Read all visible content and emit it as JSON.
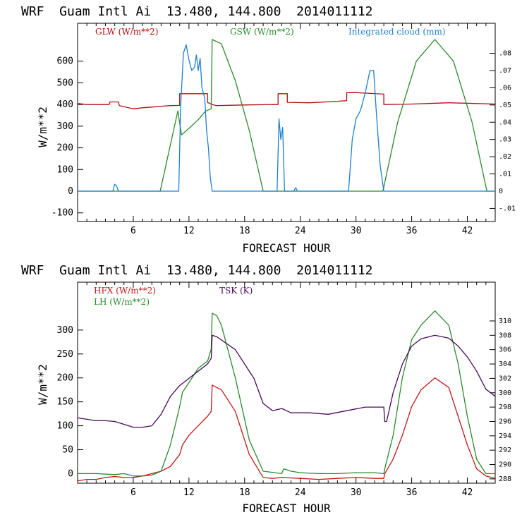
{
  "chart_data": [
    {
      "type": "line",
      "title": "WRF  Guam Intl Ai  13.480, 144.800  2014011112",
      "xlabel": "FORECAST HOUR",
      "ylabel": "W/m**2",
      "xlim": [
        0,
        45
      ],
      "xticks": [
        "6",
        "12",
        "18",
        "24",
        "30",
        "36",
        "42"
      ],
      "ylim": [
        -140,
        775
      ],
      "yticks": [
        "600",
        "500",
        "400",
        "300",
        "200",
        "100",
        "0",
        "-100"
      ],
      "y2lim": [
        -0.0176,
        0.0974
      ],
      "y2ticks": [
        ".08",
        ".07",
        ".06",
        ".05",
        ".04",
        ".03",
        ".02",
        ".01",
        "0",
        "-.01"
      ],
      "legend": [
        "GLW (W/m**2)",
        "GSW (W/m**2)",
        "Integrated cloud (mm)"
      ],
      "colors": {
        "glw": "#b01010",
        "gsw": "#2a8a2a",
        "cloud": "#1f7fd0"
      },
      "series": [
        {
          "name": "GLW (W/m**2)",
          "axis": "left",
          "color": "#b01010",
          "x": [
            0,
            1,
            3.4,
            3.5,
            4.4,
            4.5,
            5,
            6,
            7,
            8,
            9,
            10,
            11,
            11,
            14,
            14,
            14.5,
            15,
            18,
            21,
            21.6,
            21.6,
            22.6,
            22.6,
            25,
            28,
            29,
            29,
            30,
            33,
            33,
            36,
            40,
            45
          ],
          "y": [
            405,
            400,
            400,
            412,
            412,
            395,
            390,
            380,
            385,
            388,
            392,
            395,
            396,
            450,
            450,
            410,
            400,
            395,
            398,
            400,
            400,
            450,
            450,
            410,
            408,
            415,
            418,
            455,
            455,
            448,
            400,
            402,
            408,
            402
          ]
        },
        {
          "name": "GSW (W/m**2)",
          "axis": "left",
          "color": "#2a8a2a",
          "x": [
            0,
            8.9,
            10.8,
            11.2,
            12,
            13,
            13.8,
            14.4,
            14.5,
            15.5,
            17,
            18.5,
            20,
            32.9,
            34.5,
            36.5,
            38.5,
            40.5,
            42.5,
            44.1,
            45
          ],
          "y": [
            0,
            0,
            370,
            260,
            290,
            330,
            370,
            380,
            700,
            680,
            510,
            280,
            0,
            0,
            320,
            600,
            700,
            600,
            320,
            0,
            0
          ]
        },
        {
          "name": "Integrated cloud (mm)",
          "axis": "right",
          "color": "#1f7fd0",
          "x": [
            0,
            3.8,
            4.0,
            4.2,
            4.4,
            10.9,
            11.1,
            11.4,
            11.7,
            12.0,
            12.3,
            12.6,
            12.8,
            13.0,
            13.2,
            13.4,
            13.7,
            13.9,
            14.1,
            14.3,
            14.5,
            21.5,
            21.7,
            21.9,
            22.1,
            22.3,
            23.3,
            23.5,
            23.7,
            29.2,
            29.6,
            30.0,
            30.5,
            31.0,
            31.5,
            31.9,
            32.2,
            32.6,
            33.0,
            45
          ],
          "y": [
            0,
            0,
            0.004,
            0.003,
            0,
            0,
            0.048,
            0.08,
            0.085,
            0.076,
            0.07,
            0.072,
            0.079,
            0.07,
            0.077,
            0.06,
            0.054,
            0.035,
            0.025,
            0.008,
            0,
            0,
            0.042,
            0.03,
            0.037,
            0,
            0,
            0.002,
            0,
            0,
            0.03,
            0.042,
            0.047,
            0.057,
            0.07,
            0.07,
            0.045,
            0.015,
            0,
            0
          ]
        }
      ]
    },
    {
      "type": "line",
      "title": "WRF  Guam Intl Ai  13.480, 144.800  2014011112",
      "xlabel": "FORECAST HOUR",
      "ylabel": "W/m**2",
      "xlim": [
        0,
        45
      ],
      "xticks": [
        "6",
        "12",
        "18",
        "24",
        "30",
        "36",
        "42"
      ],
      "ylim": [
        -20,
        400
      ],
      "yticks": [
        "300",
        "250",
        "200",
        "150",
        "100",
        "50",
        "0"
      ],
      "y2lim": [
        287.4,
        315.4
      ],
      "y2ticks": [
        "310",
        "308",
        "306",
        "304",
        "302",
        "300",
        "298",
        "296",
        "294",
        "292",
        "290",
        "288"
      ],
      "legend": [
        "HFX (W/m**2)",
        "LH  (W/m**2)",
        "TSK (K)"
      ],
      "colors": {
        "hfx": "#c01818",
        "lh": "#2a8a2a",
        "tsk": "#4a0a5a"
      },
      "series": [
        {
          "name": "HFX (W/m**2)",
          "axis": "left",
          "color": "#c01818",
          "x": [
            0,
            1,
            2,
            3,
            4,
            5,
            6,
            7,
            8,
            9,
            10,
            11,
            11.3,
            12,
            13,
            14,
            14.4,
            14.5,
            15,
            15.5,
            17,
            18.5,
            20,
            21,
            22,
            24,
            26,
            28,
            30,
            32,
            33,
            33.1,
            34,
            35,
            36,
            37,
            38.5,
            40,
            41,
            42,
            43,
            44,
            45
          ],
          "y": [
            -15,
            -12,
            -12,
            -8,
            -6,
            -8,
            -8,
            -5,
            0,
            5,
            15,
            40,
            60,
            80,
            100,
            120,
            130,
            185,
            180,
            175,
            130,
            40,
            -8,
            -10,
            -8,
            -10,
            -12,
            -10,
            -8,
            -10,
            -10,
            0,
            30,
            80,
            140,
            175,
            200,
            180,
            120,
            60,
            10,
            -5,
            -10
          ]
        },
        {
          "name": "LH  (W/m**2)",
          "axis": "left",
          "color": "#2a8a2a",
          "x": [
            0,
            2,
            4,
            5,
            6,
            7,
            8,
            9,
            10,
            11,
            11.3,
            12,
            13,
            14,
            14.4,
            14.5,
            15,
            15.5,
            17,
            18.5,
            20,
            22,
            22.2,
            23,
            24,
            26,
            28,
            30,
            32,
            33,
            33.1,
            34,
            35,
            36,
            37,
            38.5,
            40,
            41,
            42,
            43,
            44,
            45
          ],
          "y": [
            0,
            0,
            -2,
            0,
            -5,
            -5,
            -3,
            5,
            60,
            140,
            170,
            190,
            220,
            235,
            260,
            335,
            330,
            310,
            200,
            70,
            5,
            0,
            10,
            5,
            2,
            0,
            0,
            2,
            2,
            0,
            10,
            80,
            200,
            280,
            310,
            340,
            310,
            230,
            120,
            30,
            0,
            0
          ]
        },
        {
          "name": "TSK (K)",
          "axis": "right",
          "color": "#4a0a5a",
          "x": [
            0,
            1,
            2,
            3,
            4,
            5,
            6,
            7,
            8,
            9,
            10,
            11,
            12,
            13,
            14,
            14.4,
            14.5,
            15,
            17,
            19,
            20,
            21,
            22,
            23,
            25,
            27,
            29,
            31,
            32,
            33,
            33.1,
            33.3,
            34,
            35,
            36,
            37,
            38.5,
            40,
            41,
            42,
            43,
            44,
            45
          ],
          "y": [
            296.5,
            296.3,
            296.1,
            296.1,
            296,
            295.6,
            295.2,
            295.2,
            295.4,
            297,
            299.5,
            301,
            302,
            303,
            304,
            304.8,
            308,
            307.8,
            306,
            302,
            298.5,
            297.5,
            297.8,
            297.2,
            297.2,
            297,
            297.5,
            298,
            298,
            298,
            296,
            296,
            300,
            304,
            306.5,
            307.5,
            308,
            307.6,
            306.5,
            305,
            303,
            300.5,
            299.5
          ]
        }
      ]
    }
  ]
}
